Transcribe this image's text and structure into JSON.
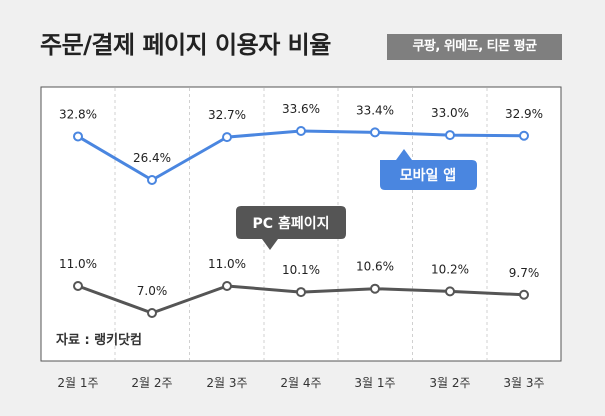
{
  "title": "주문/결제 페이지 이용자 비율",
  "subtitle": "쿠팡, 위메프, 티몬 평균",
  "source": "자료 : 랭키닷컴",
  "colors": {
    "mobile": "#4a86e0",
    "pc": "#555555",
    "mobile_callout": "#4a86e0",
    "pc_callout": "#555555",
    "background": "#f0f0f0",
    "plot_background": "#ffffff",
    "badge": "#7f7f7f"
  },
  "chart_data": {
    "type": "line",
    "title": "주문/결제 페이지 이용자 비율",
    "subtitle": "쿠팡, 위메프, 티몬 평균",
    "categories": [
      "2월 1주",
      "2월 2주",
      "2월 3주",
      "2월 4주",
      "3월 1주",
      "3월 2주",
      "3월 3주"
    ],
    "series": [
      {
        "name": "모바일 앱",
        "values": [
          32.8,
          26.4,
          32.7,
          33.6,
          33.4,
          33.0,
          32.9
        ],
        "labels": [
          "32.8%",
          "26.4%",
          "32.7%",
          "33.6%",
          "33.4%",
          "33.0%",
          "32.9%"
        ]
      },
      {
        "name": "PC 홈페이지",
        "values": [
          11.0,
          7.0,
          11.0,
          10.1,
          10.6,
          10.2,
          9.7
        ],
        "labels": [
          "11.0%",
          "7.0%",
          "11.0%",
          "10.1%",
          "10.6%",
          "10.2%",
          "9.7%"
        ]
      }
    ],
    "grid": "vertical dashed",
    "legend": "callouts beside each line"
  }
}
